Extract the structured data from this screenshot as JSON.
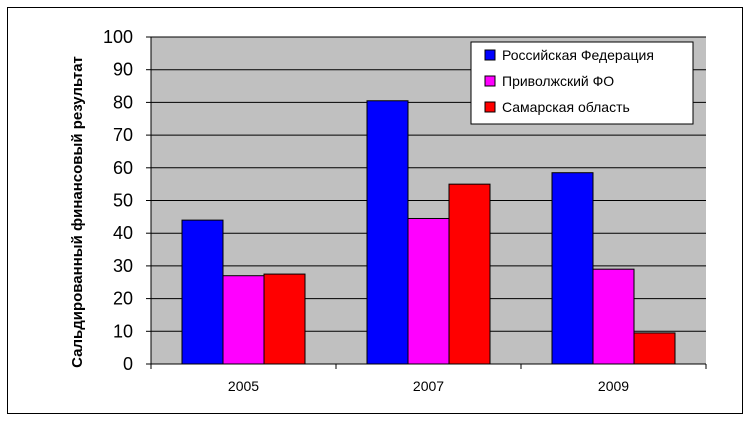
{
  "chart_data": {
    "type": "bar",
    "categories": [
      "2005",
      "2007",
      "2009"
    ],
    "series": [
      {
        "name": "Российская Федерация",
        "values": [
          44,
          80.5,
          58.5
        ],
        "color": "#0000FF"
      },
      {
        "name": "Приволжский ФО",
        "values": [
          27,
          44.5,
          29
        ],
        "color": "#FF00FF"
      },
      {
        "name": "Самарская область",
        "values": [
          27.5,
          55,
          9.5
        ],
        "color": "#FF0000"
      }
    ],
    "title": "",
    "xlabel": "",
    "ylabel": "Сальдированный финансовый результат",
    "ylim": [
      0,
      100
    ],
    "yticks": [
      0,
      10,
      20,
      30,
      40,
      50,
      60,
      70,
      80,
      90,
      100
    ],
    "grid": true,
    "plot_background": "#C0C0C0",
    "legend_position": "top-right"
  }
}
